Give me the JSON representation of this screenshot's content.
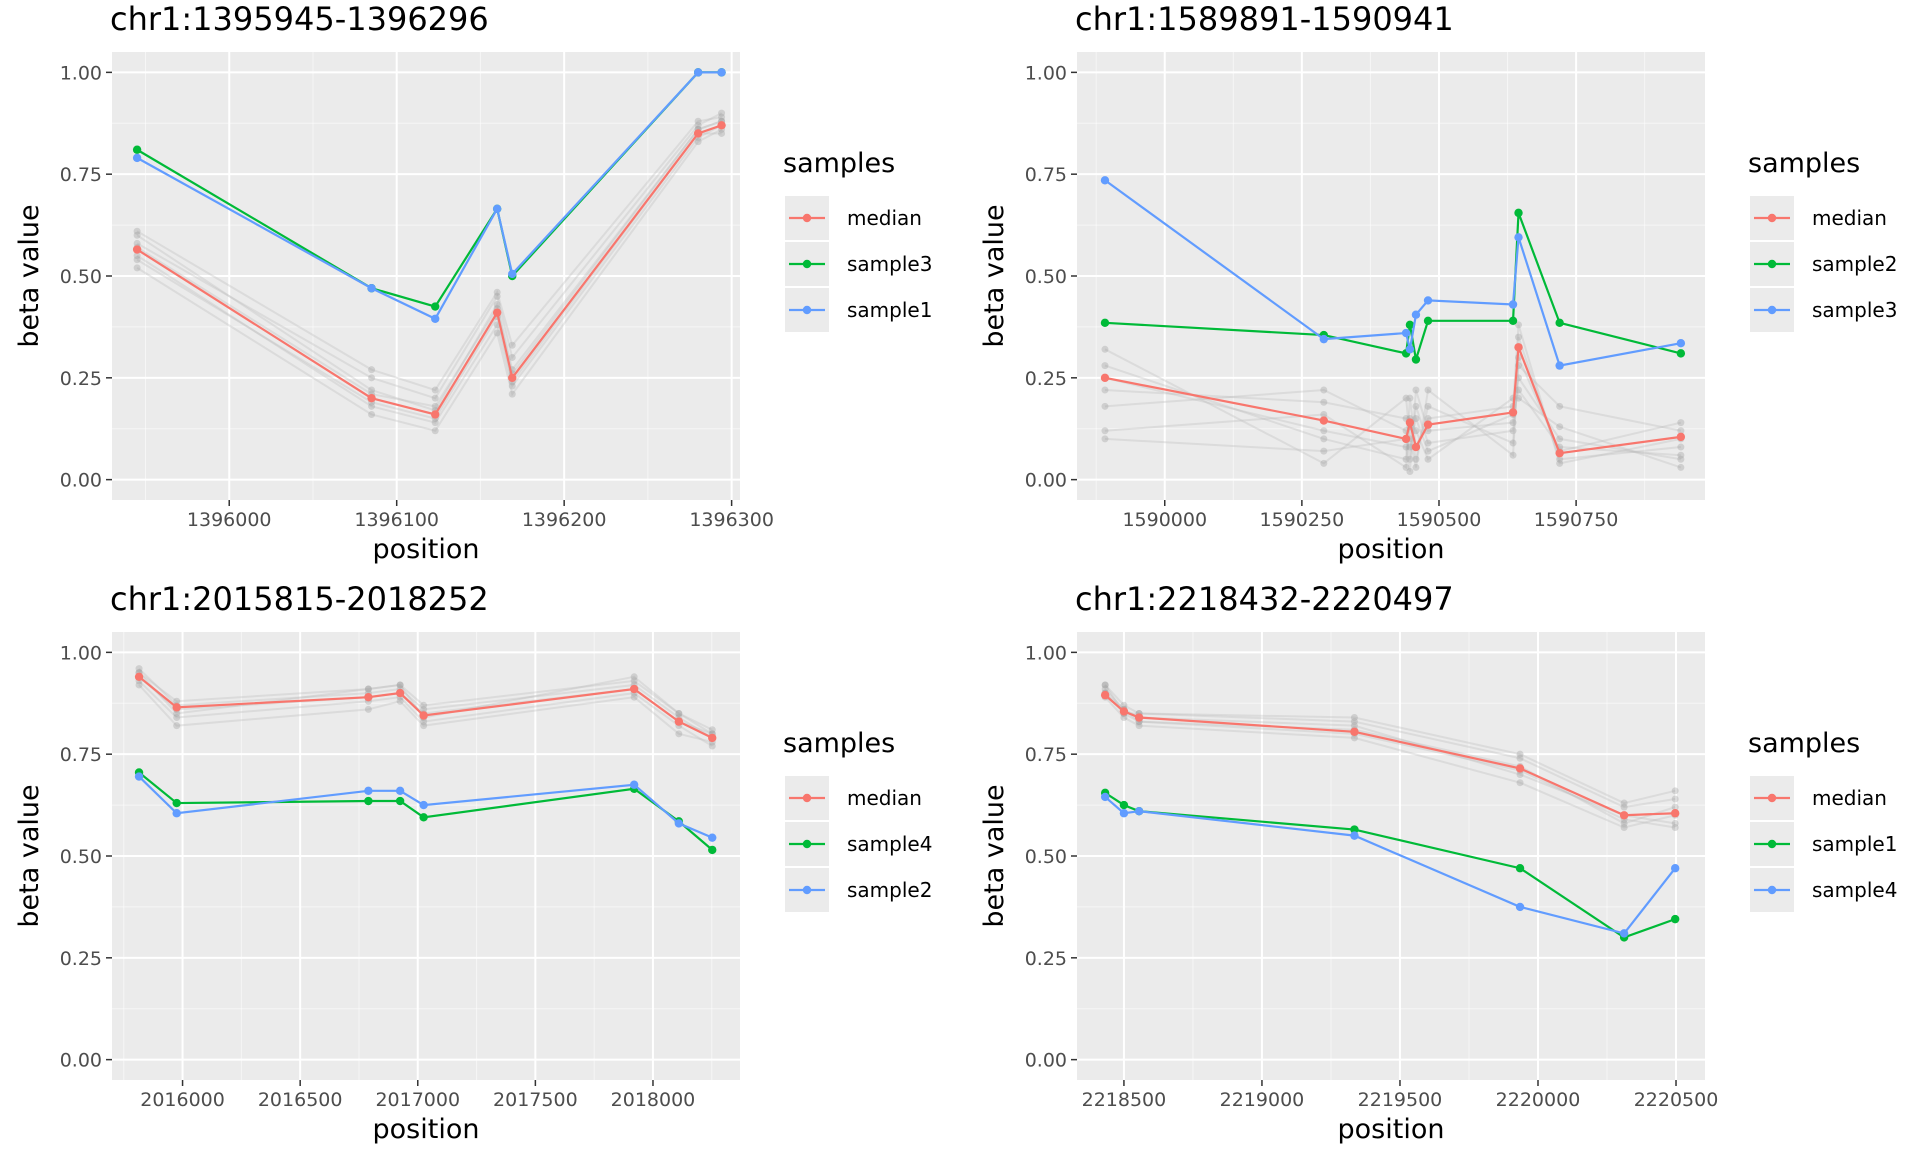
{
  "legend_title": "samples",
  "colors": {
    "panel_bg": "#EBEBEB",
    "grid_major": "#FFFFFF",
    "background_lines": "#BEBEBE",
    "median": "#F8766D",
    "green": "#00BA38",
    "blue": "#619CFF"
  },
  "chart_data": [
    {
      "type": "line",
      "title": "chr1:1395945-1396296",
      "xlabel": "position",
      "ylabel": "beta value",
      "xlim": [
        1395930,
        1396305
      ],
      "ylim": [
        -0.05,
        1.05
      ],
      "x_ticks": [
        1396000,
        1396100,
        1396200,
        1396300
      ],
      "x_tick_labels": [
        "1396000",
        "1396100",
        "1396200",
        "1396300"
      ],
      "y_ticks": [
        0,
        0.25,
        0.5,
        0.75,
        1
      ],
      "y_tick_labels": [
        "0.00",
        "0.25",
        "0.50",
        "0.75",
        "1.00"
      ],
      "grid": true,
      "legend": "right",
      "x": [
        1395945,
        1396085,
        1396123,
        1396160,
        1396169,
        1396280,
        1396294
      ],
      "background_series": [
        [
          0.6,
          0.22,
          0.17,
          0.43,
          0.27,
          0.86,
          0.88
        ],
        [
          0.55,
          0.18,
          0.14,
          0.38,
          0.23,
          0.84,
          0.87
        ],
        [
          0.58,
          0.25,
          0.2,
          0.45,
          0.3,
          0.87,
          0.9
        ],
        [
          0.52,
          0.16,
          0.12,
          0.36,
          0.21,
          0.83,
          0.86
        ],
        [
          0.61,
          0.27,
          0.22,
          0.46,
          0.33,
          0.88,
          0.89
        ],
        [
          0.54,
          0.19,
          0.15,
          0.4,
          0.24,
          0.85,
          0.85
        ],
        [
          0.57,
          0.21,
          0.18,
          0.42,
          0.26,
          0.86,
          0.88
        ]
      ],
      "series": [
        {
          "name": "median",
          "color": "#F8766D",
          "values": [
            0.565,
            0.2,
            0.16,
            0.41,
            0.25,
            0.85,
            0.87
          ]
        },
        {
          "name": "sample3",
          "color": "#00BA38",
          "values": [
            0.81,
            0.47,
            0.425,
            0.665,
            0.5,
            1.0,
            1.0
          ]
        },
        {
          "name": "sample1",
          "color": "#619CFF",
          "values": [
            0.79,
            0.47,
            0.395,
            0.665,
            0.505,
            1.0,
            1.0
          ]
        }
      ]
    },
    {
      "type": "line",
      "title": "chr1:1589891-1590941",
      "xlabel": "position",
      "ylabel": "beta value",
      "xlim": [
        1589840,
        1590985
      ],
      "ylim": [
        -0.05,
        1.05
      ],
      "x_ticks": [
        1590000,
        1590250,
        1590500,
        1590750
      ],
      "x_tick_labels": [
        "1590000",
        "1590250",
        "1590500",
        "1590750"
      ],
      "y_ticks": [
        0,
        0.25,
        0.5,
        0.75,
        1
      ],
      "y_tick_labels": [
        "0.00",
        "0.25",
        "0.50",
        "0.75",
        "1.00"
      ],
      "grid": true,
      "legend": "right",
      "x": [
        1589891,
        1590290,
        1590440,
        1590447,
        1590458,
        1590480,
        1590635,
        1590645,
        1590720,
        1590941
      ],
      "background_series": [
        [
          0.28,
          0.1,
          0.05,
          0.2,
          0.08,
          0.15,
          0.18,
          0.38,
          0.04,
          0.1
        ],
        [
          0.18,
          0.22,
          0.12,
          0.05,
          0.18,
          0.09,
          0.12,
          0.25,
          0.1,
          0.05
        ],
        [
          0.32,
          0.04,
          0.2,
          0.1,
          0.03,
          0.22,
          0.06,
          0.3,
          0.07,
          0.14
        ],
        [
          0.12,
          0.16,
          0.03,
          0.15,
          0.12,
          0.05,
          0.2,
          0.2,
          0.13,
          0.03
        ],
        [
          0.25,
          0.12,
          0.08,
          0.02,
          0.22,
          0.12,
          0.14,
          0.35,
          0.05,
          0.08
        ],
        [
          0.22,
          0.19,
          0.15,
          0.13,
          0.05,
          0.18,
          0.09,
          0.28,
          0.18,
          0.12
        ],
        [
          0.1,
          0.07,
          0.1,
          0.08,
          0.15,
          0.07,
          0.16,
          0.22,
          0.08,
          0.06
        ]
      ],
      "series": [
        {
          "name": "median",
          "color": "#F8766D",
          "values": [
            0.25,
            0.145,
            0.1,
            0.14,
            0.08,
            0.135,
            0.165,
            0.325,
            0.065,
            0.105
          ]
        },
        {
          "name": "sample2",
          "color": "#00BA38",
          "values": [
            0.385,
            0.355,
            0.31,
            0.38,
            0.295,
            0.39,
            0.39,
            0.655,
            0.385,
            0.31
          ]
        },
        {
          "name": "sample3",
          "color": "#619CFF",
          "values": [
            0.735,
            0.345,
            0.36,
            0.32,
            0.405,
            0.44,
            0.43,
            0.595,
            0.28,
            0.335
          ]
        }
      ]
    },
    {
      "type": "line",
      "title": "chr1:2015815-2018252",
      "xlabel": "position",
      "ylabel": "beta value",
      "xlim": [
        2015700,
        2018370
      ],
      "ylim": [
        -0.05,
        1.05
      ],
      "x_ticks": [
        2016000,
        2016500,
        2017000,
        2017500,
        2018000
      ],
      "x_tick_labels": [
        "2016000",
        "2016500",
        "2017000",
        "2017500",
        "2018000"
      ],
      "y_ticks": [
        0,
        0.25,
        0.5,
        0.75,
        1
      ],
      "y_tick_labels": [
        "0.00",
        "0.25",
        "0.50",
        "0.75",
        "1.00"
      ],
      "grid": true,
      "legend": "right",
      "x": [
        2015815,
        2015975,
        2016790,
        2016925,
        2017025,
        2017920,
        2018110,
        2018252
      ],
      "background_series": [
        [
          0.95,
          0.88,
          0.91,
          0.92,
          0.87,
          0.93,
          0.85,
          0.8
        ],
        [
          0.93,
          0.84,
          0.88,
          0.89,
          0.83,
          0.9,
          0.82,
          0.77
        ],
        [
          0.96,
          0.87,
          0.9,
          0.91,
          0.86,
          0.92,
          0.84,
          0.79
        ],
        [
          0.92,
          0.82,
          0.86,
          0.88,
          0.82,
          0.89,
          0.8,
          0.78
        ],
        [
          0.94,
          0.86,
          0.89,
          0.9,
          0.85,
          0.91,
          0.83,
          0.8
        ],
        [
          0.95,
          0.85,
          0.91,
          0.92,
          0.84,
          0.94,
          0.85,
          0.81
        ]
      ],
      "series": [
        {
          "name": "median",
          "color": "#F8766D",
          "values": [
            0.94,
            0.865,
            0.89,
            0.9,
            0.845,
            0.91,
            0.83,
            0.79
          ]
        },
        {
          "name": "sample4",
          "color": "#00BA38",
          "values": [
            0.705,
            0.63,
            0.635,
            0.635,
            0.595,
            0.665,
            0.585,
            0.515
          ]
        },
        {
          "name": "sample2",
          "color": "#619CFF",
          "values": [
            0.695,
            0.605,
            0.66,
            0.66,
            0.625,
            0.675,
            0.58,
            0.545
          ]
        }
      ]
    },
    {
      "type": "line",
      "title": "chr1:2218432-2220497",
      "xlabel": "position",
      "ylabel": "beta value",
      "xlim": [
        2218330,
        2220605
      ],
      "ylim": [
        -0.05,
        1.05
      ],
      "x_ticks": [
        2218500,
        2219000,
        2219500,
        2220000,
        2220500
      ],
      "x_tick_labels": [
        "2218500",
        "2219000",
        "2219500",
        "2220000",
        "2220500"
      ],
      "y_ticks": [
        0,
        0.25,
        0.5,
        0.75,
        1
      ],
      "y_tick_labels": [
        "0.00",
        "0.25",
        "0.50",
        "0.75",
        "1.00"
      ],
      "grid": true,
      "legend": "right",
      "x": [
        2218432,
        2218500,
        2218555,
        2219335,
        2219935,
        2220312,
        2220497
      ],
      "background_series": [
        [
          0.92,
          0.87,
          0.85,
          0.83,
          0.74,
          0.62,
          0.64
        ],
        [
          0.9,
          0.85,
          0.83,
          0.81,
          0.72,
          0.58,
          0.62
        ],
        [
          0.91,
          0.86,
          0.84,
          0.82,
          0.7,
          0.6,
          0.58
        ],
        [
          0.89,
          0.84,
          0.82,
          0.79,
          0.68,
          0.57,
          0.6
        ],
        [
          0.92,
          0.85,
          0.85,
          0.84,
          0.75,
          0.63,
          0.66
        ],
        [
          0.9,
          0.86,
          0.83,
          0.8,
          0.71,
          0.59,
          0.57
        ]
      ],
      "series": [
        {
          "name": "median",
          "color": "#F8766D",
          "values": [
            0.895,
            0.855,
            0.84,
            0.805,
            0.715,
            0.6,
            0.605
          ]
        },
        {
          "name": "sample1",
          "color": "#00BA38",
          "values": [
            0.655,
            0.625,
            0.61,
            0.565,
            0.47,
            0.3,
            0.345
          ]
        },
        {
          "name": "sample4",
          "color": "#619CFF",
          "values": [
            0.645,
            0.605,
            0.61,
            0.55,
            0.375,
            0.31,
            0.47
          ]
        }
      ]
    }
  ]
}
